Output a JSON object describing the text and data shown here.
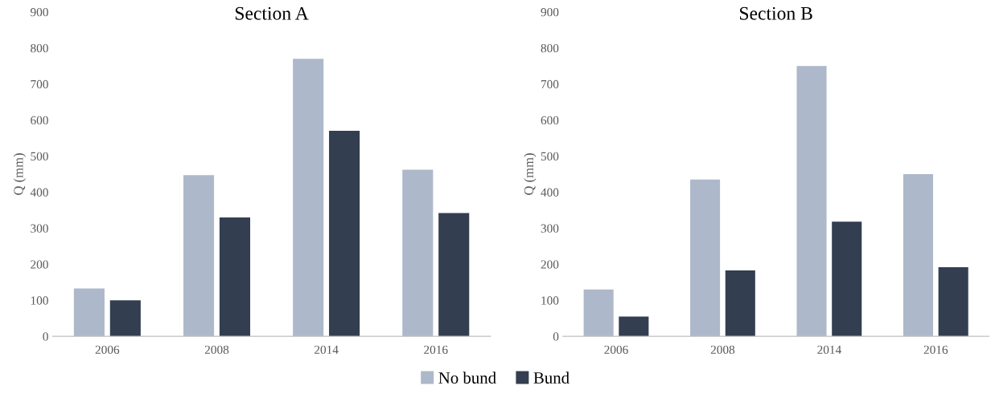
{
  "chart_data": [
    {
      "type": "bar",
      "title": "Section A",
      "ylabel": "Q (mm)",
      "categories": [
        "2006",
        "2008",
        "2014",
        "2016"
      ],
      "ylim": [
        0,
        900
      ],
      "yticks": [
        0,
        100,
        200,
        300,
        400,
        500,
        600,
        700,
        800,
        900
      ],
      "grid": false,
      "legend": "bottom",
      "series": [
        {
          "name": "No bund",
          "color": "#adb9ca",
          "values": [
            133,
            447,
            770,
            462
          ]
        },
        {
          "name": "Bund",
          "color": "#333f50",
          "values": [
            100,
            330,
            570,
            342
          ]
        }
      ]
    },
    {
      "type": "bar",
      "title": "Section B",
      "ylabel": "Q (mm)",
      "categories": [
        "2006",
        "2008",
        "2014",
        "2016"
      ],
      "ylim": [
        0,
        900
      ],
      "yticks": [
        0,
        100,
        200,
        300,
        400,
        500,
        600,
        700,
        800,
        900
      ],
      "grid": false,
      "series": [
        {
          "color": "#adb9ca",
          "values": [
            130,
            435,
            750,
            450
          ]
        },
        {
          "color": "#333f50",
          "values": [
            55,
            183,
            318,
            192
          ]
        }
      ]
    }
  ]
}
